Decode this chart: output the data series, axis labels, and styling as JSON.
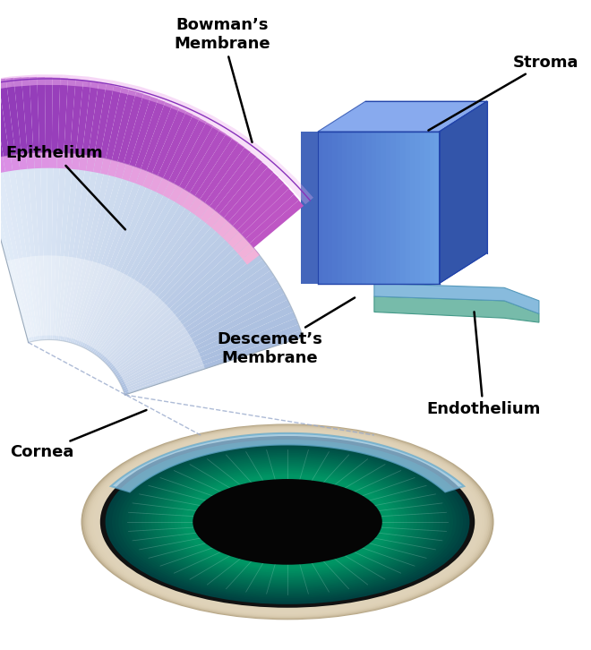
{
  "labels": {
    "epithelium": "Epithelium",
    "bowmans": "Bowman’s\nMembrane",
    "stroma": "Stroma",
    "descemets": "Descemet’s\nMembrane",
    "endothelium": "Endothelium",
    "cornea": "Cornea"
  },
  "colors": {
    "background": "#FFFFFF",
    "annotation_line": "#000000"
  },
  "font_size_label": 13,
  "font_weight": "bold"
}
